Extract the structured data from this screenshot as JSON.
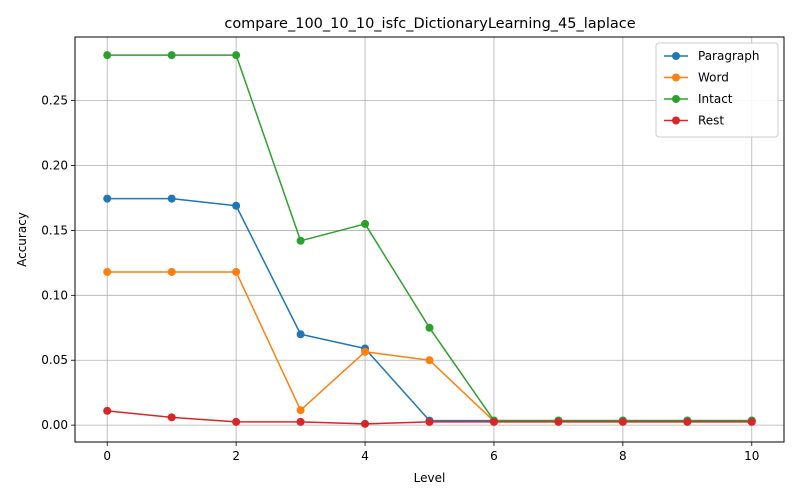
{
  "chart_data": {
    "type": "line",
    "title": "compare_100_10_10_isfc_DictionaryLearning_45_laplace",
    "xlabel": "Level",
    "ylabel": "Accuracy",
    "xlim": [
      -0.5,
      10.5
    ],
    "ylim": [
      -0.013,
      0.299
    ],
    "xticks": [
      0,
      2,
      4,
      6,
      8,
      10
    ],
    "xtick_labels": [
      "0",
      "2",
      "4",
      "6",
      "8",
      "10"
    ],
    "yticks": [
      0.0,
      0.05,
      0.1,
      0.15,
      0.2,
      0.25
    ],
    "ytick_labels": [
      "0.00",
      "0.05",
      "0.10",
      "0.15",
      "0.20",
      "0.25"
    ],
    "grid": true,
    "legend_position": "top-right",
    "x": [
      0,
      1,
      2,
      3,
      4,
      5,
      6,
      7,
      8,
      9,
      10
    ],
    "series": [
      {
        "name": "Paragraph",
        "color": "#1f77b4",
        "values": [
          0.1745,
          0.1745,
          0.169,
          0.07,
          0.059,
          0.0035,
          0.0035,
          0.0035,
          0.0035,
          0.0035,
          0.0035
        ]
      },
      {
        "name": "Word",
        "color": "#ff7f0e",
        "values": [
          0.118,
          0.118,
          0.118,
          0.0115,
          0.0565,
          0.05,
          0.003,
          0.003,
          0.003,
          0.003,
          0.003
        ]
      },
      {
        "name": "Intact",
        "color": "#2ca02c",
        "values": [
          0.285,
          0.285,
          0.285,
          0.142,
          0.155,
          0.075,
          0.0035,
          0.0035,
          0.0035,
          0.0035,
          0.0035
        ]
      },
      {
        "name": "Rest",
        "color": "#d62728",
        "values": [
          0.011,
          0.006,
          0.0025,
          0.0025,
          0.001,
          0.0025,
          0.0025,
          0.0025,
          0.0025,
          0.0025,
          0.0025
        ]
      }
    ]
  }
}
